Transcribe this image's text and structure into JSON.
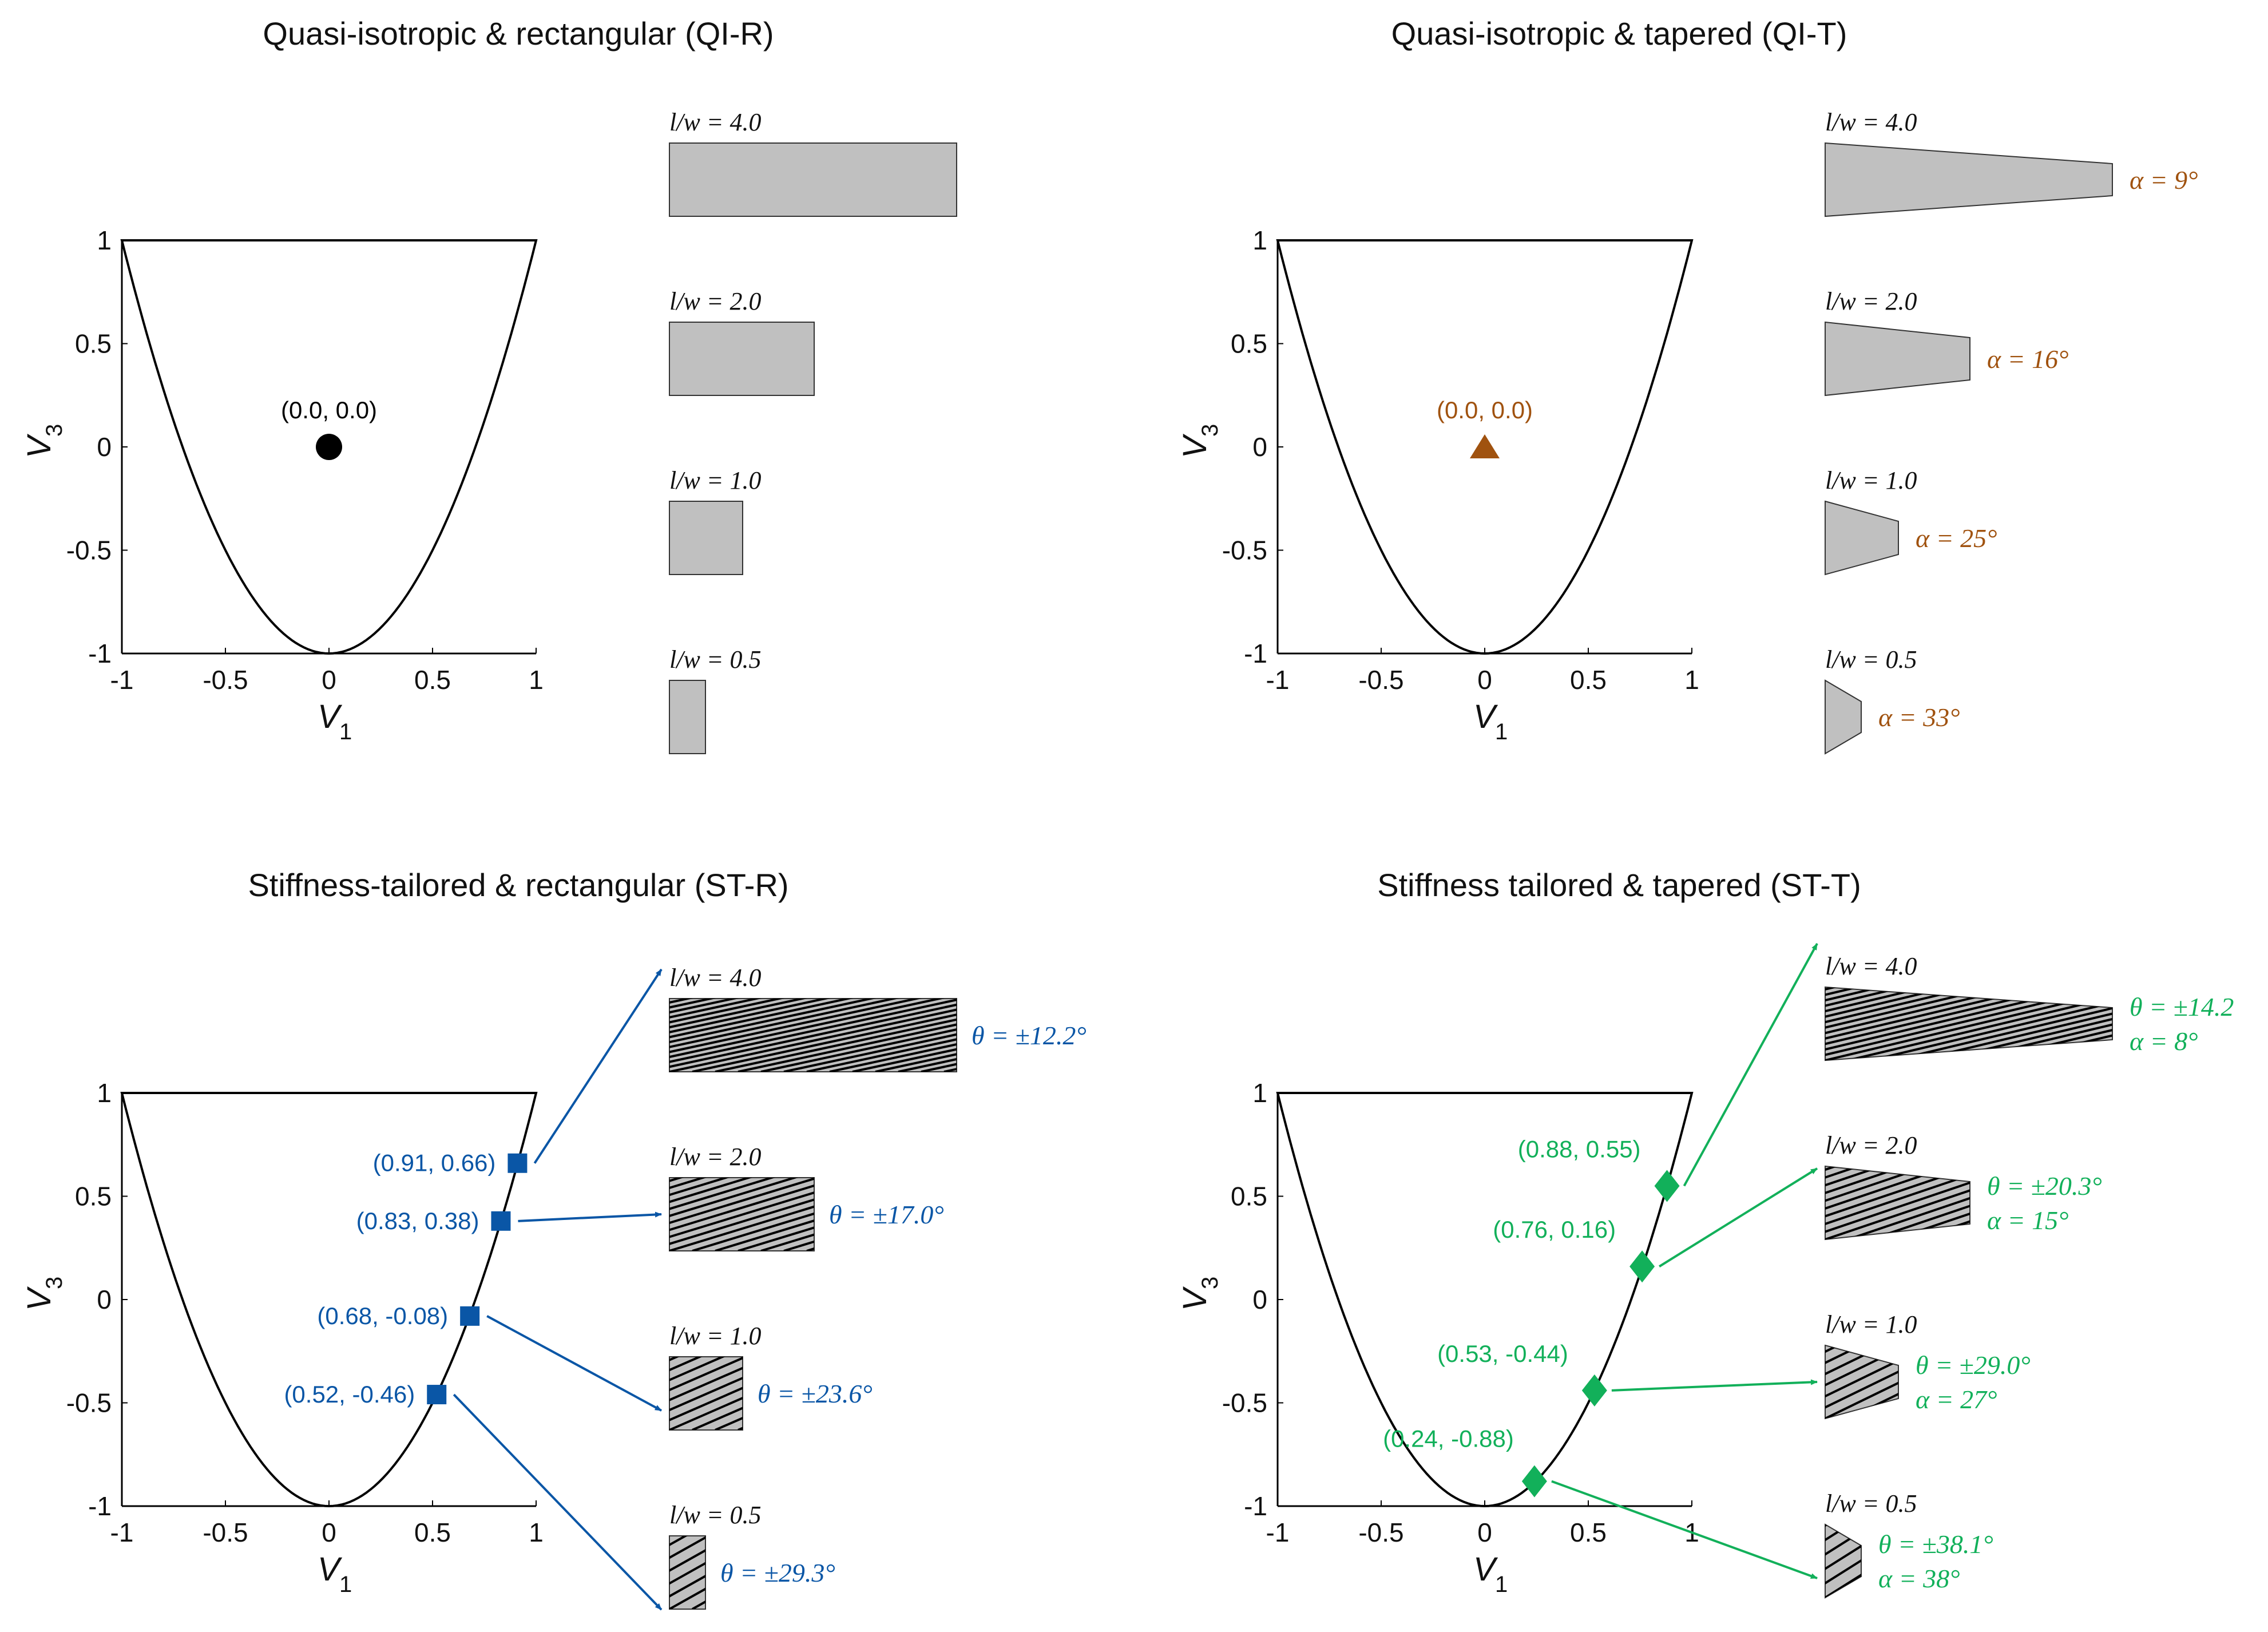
{
  "colors": {
    "black": "#000000",
    "brown": "#A0520F",
    "blue": "#0A56A6",
    "green": "#12B05A",
    "shape_fill": "#C0C0C0"
  },
  "panels": [
    {
      "id": "qi-r",
      "title": "Quasi-isotropic & rectangular (QI-R)",
      "xlabel": "V",
      "xlabel_sub": "1",
      "ylabel": "V",
      "ylabel_sub": "3",
      "x_ticks": [
        "-1",
        "-0.5",
        "0",
        "0.5",
        "1"
      ],
      "y_ticks": [
        "1",
        "0.5",
        "0",
        "-0.5",
        "-1"
      ],
      "points": [
        {
          "label": "(0.0, 0.0)",
          "v1": 0.0,
          "v3": 0.0,
          "marker": "circle",
          "color": "black"
        }
      ],
      "shapes": [
        {
          "lw_label": "l/w = 4.0",
          "annot": []
        },
        {
          "lw_label": "l/w = 2.0",
          "annot": []
        },
        {
          "lw_label": "l/w = 1.0",
          "annot": []
        },
        {
          "lw_label": "l/w = 0.5",
          "annot": []
        }
      ]
    },
    {
      "id": "qi-t",
      "title": "Quasi-isotropic & tapered (QI-T)",
      "xlabel": "V",
      "xlabel_sub": "1",
      "ylabel": "V",
      "ylabel_sub": "3",
      "x_ticks": [
        "-1",
        "-0.5",
        "0",
        "0.5",
        "1"
      ],
      "y_ticks": [
        "1",
        "0.5",
        "0",
        "-0.5",
        "-1"
      ],
      "points": [
        {
          "label": "(0.0, 0.0)",
          "v1": 0.0,
          "v3": 0.0,
          "marker": "triangle",
          "color": "brown"
        }
      ],
      "shapes": [
        {
          "lw_label": "l/w = 4.0",
          "annot": [
            "α = 9°"
          ]
        },
        {
          "lw_label": "l/w = 2.0",
          "annot": [
            "α = 16°"
          ]
        },
        {
          "lw_label": "l/w = 1.0",
          "annot": [
            "α = 25°"
          ]
        },
        {
          "lw_label": "l/w = 0.5",
          "annot": [
            "α = 33°"
          ]
        }
      ]
    },
    {
      "id": "st-r",
      "title": "Stiffness-tailored & rectangular (ST-R)",
      "xlabel": "V",
      "xlabel_sub": "1",
      "ylabel": "V",
      "ylabel_sub": "3",
      "x_ticks": [
        "-1",
        "-0.5",
        "0",
        "0.5",
        "1"
      ],
      "y_ticks": [
        "1",
        "0.5",
        "0",
        "-0.5",
        "-1"
      ],
      "points": [
        {
          "label": "(0.91, 0.66)",
          "v1": 0.91,
          "v3": 0.66,
          "marker": "square",
          "color": "blue"
        },
        {
          "label": "(0.83, 0.38)",
          "v1": 0.83,
          "v3": 0.38,
          "marker": "square",
          "color": "blue"
        },
        {
          "label": "(0.68, -0.08)",
          "v1": 0.68,
          "v3": -0.08,
          "marker": "square",
          "color": "blue"
        },
        {
          "label": "(0.52, -0.46)",
          "v1": 0.52,
          "v3": -0.46,
          "marker": "square",
          "color": "blue"
        }
      ],
      "shapes": [
        {
          "lw_label": "l/w = 4.0",
          "annot": [
            "θ = ±12.2°"
          ]
        },
        {
          "lw_label": "l/w = 2.0",
          "annot": [
            "θ = ±17.0°"
          ]
        },
        {
          "lw_label": "l/w = 1.0",
          "annot": [
            "θ = ±23.6°"
          ]
        },
        {
          "lw_label": "l/w = 0.5",
          "annot": [
            "θ = ±29.3°"
          ]
        }
      ]
    },
    {
      "id": "st-t",
      "title": "Stiffness tailored & tapered (ST-T)",
      "xlabel": "V",
      "xlabel_sub": "1",
      "ylabel": "V",
      "ylabel_sub": "3",
      "x_ticks": [
        "-1",
        "-0.5",
        "0",
        "0.5",
        "1"
      ],
      "y_ticks": [
        "1",
        "0.5",
        "0",
        "-0.5",
        "-1"
      ],
      "points": [
        {
          "label": "(0.88, 0.55)",
          "v1": 0.88,
          "v3": 0.55,
          "marker": "diamond",
          "color": "green"
        },
        {
          "label": "(0.76, 0.16)",
          "v1": 0.76,
          "v3": 0.16,
          "marker": "diamond",
          "color": "green"
        },
        {
          "label": "(0.53, -0.44)",
          "v1": 0.53,
          "v3": -0.44,
          "marker": "diamond",
          "color": "green"
        },
        {
          "label": "(0.24, -0.88)",
          "v1": 0.24,
          "v3": -0.88,
          "marker": "diamond",
          "color": "green"
        }
      ],
      "shapes": [
        {
          "lw_label": "l/w = 4.0",
          "annot": [
            "θ = ±14.2",
            "α = 8°"
          ]
        },
        {
          "lw_label": "l/w = 2.0",
          "annot": [
            "θ = ±20.3°",
            "α = 15°"
          ]
        },
        {
          "lw_label": "l/w = 1.0",
          "annot": [
            "θ = ±29.0°",
            "α = 27°"
          ]
        },
        {
          "lw_label": "l/w = 0.5",
          "annot": [
            "θ = ±38.1°",
            "α = 38°"
          ]
        }
      ]
    }
  ]
}
